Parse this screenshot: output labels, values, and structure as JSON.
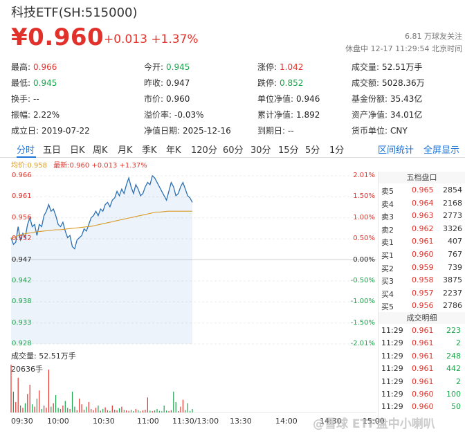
{
  "header": {
    "title": "科技ETF(SH:515000)",
    "price": "¥0.960",
    "change": "+0.013 +1.37%",
    "followers": "6.81 万球友关注",
    "status": "休盘中 12-17 11:29:54 北京时间"
  },
  "stats": [
    [
      {
        "label": "最高:",
        "value": "0.966",
        "color": "red"
      },
      {
        "label": "今开:",
        "value": "0.945",
        "color": "green"
      },
      {
        "label": "涨停:",
        "value": "1.042",
        "color": "red"
      },
      {
        "label": "成交量:",
        "value": "52.51万手",
        "color": ""
      }
    ],
    [
      {
        "label": "最低:",
        "value": "0.945",
        "color": "green"
      },
      {
        "label": "昨收:",
        "value": "0.947",
        "color": ""
      },
      {
        "label": "跌停:",
        "value": "0.852",
        "color": "green"
      },
      {
        "label": "成交额:",
        "value": "5028.36万",
        "color": ""
      }
    ],
    [
      {
        "label": "换手:",
        "value": "--",
        "color": ""
      },
      {
        "label": "市价:",
        "value": "0.960",
        "color": ""
      },
      {
        "label": "单位净值:",
        "value": "0.946",
        "color": ""
      },
      {
        "label": "基金份额:",
        "value": "35.43亿",
        "color": ""
      }
    ],
    [
      {
        "label": "振幅:",
        "value": "2.22%",
        "color": ""
      },
      {
        "label": "溢价率:",
        "value": "-0.03%",
        "color": ""
      },
      {
        "label": "累计净值:",
        "value": "1.892",
        "color": ""
      },
      {
        "label": "资产净值:",
        "value": "34.01亿",
        "color": ""
      }
    ],
    [
      {
        "label": "成立日:",
        "value": "2019-07-22",
        "color": ""
      },
      {
        "label": "净值日期:",
        "value": "2025-12-16",
        "color": ""
      },
      {
        "label": "到期日:",
        "value": "--",
        "color": ""
      },
      {
        "label": "货币单位:",
        "value": "CNY",
        "color": ""
      }
    ]
  ],
  "tabs": [
    "分时",
    "五日",
    "日K",
    "周K",
    "月K",
    "季K",
    "年K",
    "120分",
    "60分",
    "30分",
    "15分",
    "5分",
    "1分"
  ],
  "tabs_right": [
    "区间统计",
    "全屏显示"
  ],
  "legend": {
    "avg": "均价:0.958",
    "last": "最新:0.960 +0.013 +1.37%"
  },
  "chart_data": {
    "type": "line",
    "prev_close": 0.947,
    "y_left_ticks": [
      "0.966",
      "0.961",
      "0.956",
      "0.952",
      "0.947",
      "0.942",
      "0.938",
      "0.933",
      "0.928"
    ],
    "y_right_ticks": [
      "2.01%",
      "1.50%",
      "1.00%",
      "0.50%",
      "0.00%",
      "-0.50%",
      "-1.00%",
      "-1.50%",
      "-2.01%"
    ],
    "ylim": [
      0.928,
      0.966
    ],
    "x_ticks": [
      "09:30",
      "10:00",
      "10:30",
      "11:00",
      "11:30/13:00",
      "13:30",
      "14:00",
      "14:30",
      "15:00"
    ],
    "series": [
      {
        "values": [
          0.952,
          0.9505,
          0.951,
          0.9545,
          0.9515,
          0.953,
          0.952,
          0.955,
          0.9565,
          0.9545,
          0.955,
          0.9525,
          0.955,
          0.9545,
          0.957,
          0.958,
          0.9595,
          0.958,
          0.9585,
          0.957,
          0.955,
          0.9545,
          0.9555,
          0.9535,
          0.952,
          0.9525,
          0.95,
          0.9495,
          0.9515,
          0.952,
          0.9525,
          0.954,
          0.9535,
          0.955,
          0.9565,
          0.957,
          0.958,
          0.957,
          0.9585,
          0.958,
          0.9595,
          0.96,
          0.959,
          0.9605,
          0.961,
          0.9625,
          0.9615,
          0.963,
          0.962,
          0.964,
          0.9655,
          0.9635,
          0.962,
          0.964,
          0.963,
          0.9615,
          0.962,
          0.9635,
          0.9645,
          0.964,
          0.966,
          0.9655,
          0.9645,
          0.9635,
          0.9625,
          0.9615,
          0.9605,
          0.9625,
          0.9645,
          0.9635,
          0.9615,
          0.962,
          0.9635,
          0.9645,
          0.963,
          0.9615,
          0.961,
          0.96
        ]
      },
      {
        "values": [
          0.9518,
          0.9522,
          0.9526,
          0.9528,
          0.953,
          0.9531,
          0.9533,
          0.9534,
          0.9535,
          0.9536,
          0.9537,
          0.9538,
          0.9538,
          0.9539,
          0.954,
          0.9541,
          0.9542,
          0.9543,
          0.9544,
          0.9545,
          0.9546,
          0.9548,
          0.955,
          0.9552,
          0.9554,
          0.9556,
          0.9558,
          0.956,
          0.9562,
          0.9564,
          0.9566,
          0.9568,
          0.957,
          0.9572,
          0.9574,
          0.9576,
          0.9578,
          0.9578,
          0.9579,
          0.958,
          0.958,
          0.958,
          0.958,
          0.958,
          0.958,
          0.958
        ]
      }
    ],
    "volume": {
      "label": "成交量: 52.51万手",
      "max_label": "20636手",
      "values": [
        20636,
        9000,
        4500,
        15000,
        3000,
        2000,
        4000,
        8000,
        12000,
        3500,
        2500,
        6000,
        9500,
        1500,
        3000,
        2000,
        18500,
        2500,
        4000,
        7500,
        2000,
        1500,
        3000,
        5000,
        2000,
        1500,
        9000,
        2500,
        1000,
        6000,
        3500,
        1200,
        2500,
        4500,
        1500,
        1000,
        2000,
        3000,
        800,
        1500,
        2200,
        1000,
        700,
        3000,
        1200,
        900,
        1800,
        2500,
        1100,
        900,
        700,
        1200,
        600,
        1500,
        1000,
        500,
        900,
        1200,
        6500,
        800,
        600,
        900,
        1500,
        700,
        500,
        3000,
        800,
        600,
        1000,
        9000,
        4500,
        600,
        2500,
        5500,
        1000,
        4000,
        700,
        1500
      ]
    }
  },
  "orderbook": {
    "title": "五档盘口",
    "sells": [
      {
        "label": "卖5",
        "price": "0.965",
        "vol": "2854"
      },
      {
        "label": "卖4",
        "price": "0.964",
        "vol": "2168"
      },
      {
        "label": "卖3",
        "price": "0.963",
        "vol": "2773"
      },
      {
        "label": "卖2",
        "price": "0.962",
        "vol": "3326"
      },
      {
        "label": "卖1",
        "price": "0.961",
        "vol": "407"
      }
    ],
    "buys": [
      {
        "label": "买1",
        "price": "0.960",
        "vol": "767"
      },
      {
        "label": "买2",
        "price": "0.959",
        "vol": "739"
      },
      {
        "label": "买3",
        "price": "0.958",
        "vol": "3875"
      },
      {
        "label": "买4",
        "price": "0.957",
        "vol": "2237"
      },
      {
        "label": "买5",
        "price": "0.956",
        "vol": "2786"
      }
    ]
  },
  "trades": {
    "title": "成交明细",
    "rows": [
      {
        "time": "11:29",
        "price": "0.961",
        "vol": "223",
        "dir": "green"
      },
      {
        "time": "11:29",
        "price": "0.961",
        "vol": "2",
        "dir": "green"
      },
      {
        "time": "11:29",
        "price": "0.961",
        "vol": "248",
        "dir": "green"
      },
      {
        "time": "11:29",
        "price": "0.961",
        "vol": "442",
        "dir": "green"
      },
      {
        "time": "11:29",
        "price": "0.961",
        "vol": "2",
        "dir": "green"
      },
      {
        "time": "11:29",
        "price": "0.960",
        "vol": "100",
        "dir": "green"
      },
      {
        "time": "11:29",
        "price": "0.960",
        "vol": "50",
        "dir": "green"
      }
    ]
  },
  "watermark": "@雪球 ETF盘中小喇叭",
  "colors": {
    "up": "#e0322b",
    "down": "#1aa34a",
    "line": "#2a6fb3",
    "avg": "#d99a26",
    "accent": "#1a73d9"
  }
}
